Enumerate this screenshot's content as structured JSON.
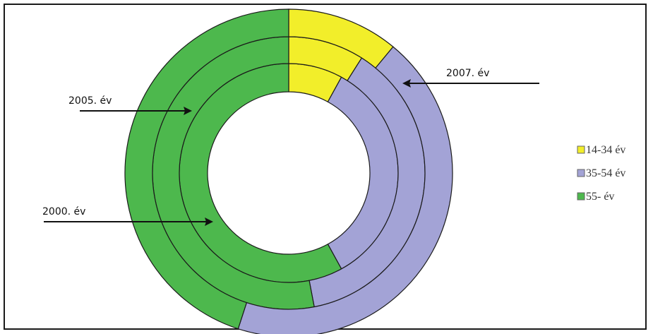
{
  "chart_data": {
    "type": "pie",
    "variant": "multi-ring donut",
    "categories": [
      "14-34 év",
      "35-54 év",
      "55- év"
    ],
    "colors": [
      "#f2ee2a",
      "#a3a3d6",
      "#4db84d"
    ],
    "series": [
      {
        "name": "2000. év",
        "values": [
          8,
          34,
          58
        ]
      },
      {
        "name": "2005. év",
        "values": [
          9,
          38,
          53
        ]
      },
      {
        "name": "2007. év",
        "values": [
          11,
          44,
          45
        ]
      }
    ],
    "ring_labels": [
      "2000. év",
      "2005. év",
      "2007. év"
    ],
    "legend": [
      "14-34 év",
      "35-54 év",
      "55- év"
    ],
    "legend_position": "right"
  }
}
